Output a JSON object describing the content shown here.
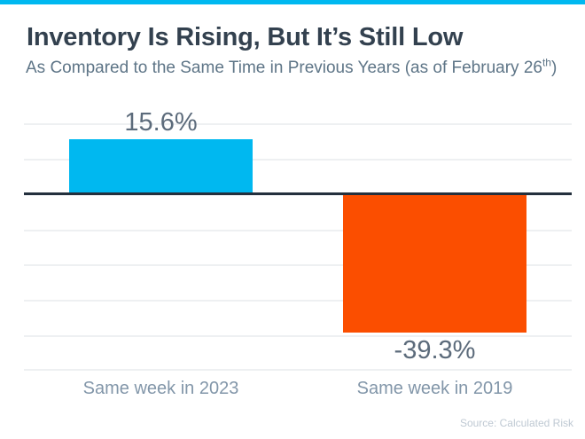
{
  "page": {
    "background": "#ffffff",
    "accent_strip_color": "#00b8f0"
  },
  "header": {
    "subtitle_pre": "As Compared to the Same Time in Previous Years (as of February 26",
    "subtitle_sup": "th",
    "subtitle_post": ")"
  },
  "chart_data": {
    "type": "bar",
    "title": "Inventory Is Rising, But It’s Still Low",
    "subtitle": "As Compared to the Same Time in Previous Years (as of February 26th)",
    "categories": [
      "Same week in 2023",
      "Same week in 2019"
    ],
    "values": [
      15.6,
      -39.3
    ],
    "value_labels": [
      "15.6%",
      "-39.3%"
    ],
    "bar_colors": [
      "#00b8f0",
      "#fb4e00"
    ],
    "ylabel": "",
    "xlabel": "",
    "ylim": [
      -50,
      20
    ],
    "gridline_step": 10,
    "grid": true,
    "legend": false,
    "zero_line_color": "#24303d",
    "gridline_color": "#eef0f2"
  },
  "footer": {
    "source": "Source: Calculated Risk"
  }
}
